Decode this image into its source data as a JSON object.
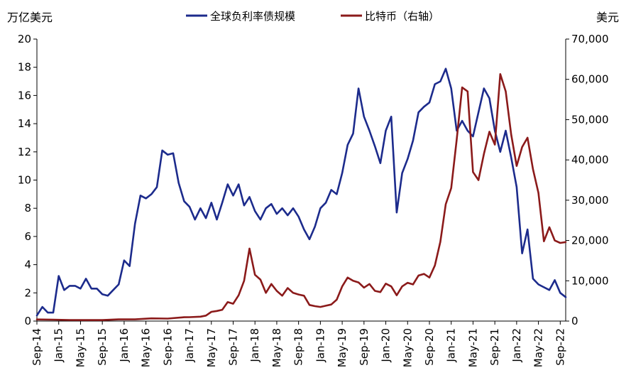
{
  "chart_data": {
    "type": "line",
    "left_axis_label": "万亿美元",
    "right_axis_label": "美元",
    "left_ylim": [
      0,
      20
    ],
    "left_yticks": [
      "0",
      "2",
      "4",
      "6",
      "8",
      "10",
      "12",
      "14",
      "16",
      "18",
      "20"
    ],
    "right_ylim": [
      0,
      70000
    ],
    "right_yticks": [
      "0",
      "10,000",
      "20,000",
      "30,000",
      "40,000",
      "50,000",
      "60,000",
      "70,000"
    ],
    "x_tick_labels": [
      "Sep-14",
      "Jan-15",
      "May-15",
      "Sep-15",
      "Jan-16",
      "May-16",
      "Sep-16",
      "Jan-17",
      "May-17",
      "Sep-17",
      "Jan-18",
      "May-18",
      "Sep-18",
      "Jan-19",
      "May-19",
      "Sep-19",
      "Jan-20",
      "May-20",
      "Sep-20",
      "Jan-21",
      "May-21",
      "Sep-21",
      "Jan-22",
      "May-22",
      "Sep-22"
    ],
    "grid": false,
    "legend_position": "top-center",
    "series": [
      {
        "name": "全球负利率债规模",
        "axis": "left",
        "color": "#1c2b8c",
        "points": [
          [
            "Sep-14",
            0.4
          ],
          [
            "Oct-14",
            1.0
          ],
          [
            "Nov-14",
            0.6
          ],
          [
            "Dec-14",
            0.6
          ],
          [
            "Jan-15",
            3.2
          ],
          [
            "Feb-15",
            2.2
          ],
          [
            "Mar-15",
            2.5
          ],
          [
            "Apr-15",
            2.5
          ],
          [
            "May-15",
            2.3
          ],
          [
            "Jun-15",
            3.0
          ],
          [
            "Jul-15",
            2.3
          ],
          [
            "Aug-15",
            2.3
          ],
          [
            "Sep-15",
            1.9
          ],
          [
            "Oct-15",
            1.8
          ],
          [
            "Nov-15",
            2.2
          ],
          [
            "Dec-15",
            2.6
          ],
          [
            "Jan-16",
            4.3
          ],
          [
            "Feb-16",
            3.9
          ],
          [
            "Mar-16",
            6.9
          ],
          [
            "Apr-16",
            8.9
          ],
          [
            "May-16",
            8.7
          ],
          [
            "Jun-16",
            9.0
          ],
          [
            "Jul-16",
            9.5
          ],
          [
            "Aug-16",
            12.1
          ],
          [
            "Sep-16",
            11.8
          ],
          [
            "Oct-16",
            11.9
          ],
          [
            "Nov-16",
            9.8
          ],
          [
            "Dec-16",
            8.5
          ],
          [
            "Jan-17",
            8.1
          ],
          [
            "Feb-17",
            7.2
          ],
          [
            "Mar-17",
            8.0
          ],
          [
            "Apr-17",
            7.3
          ],
          [
            "May-17",
            8.4
          ],
          [
            "Jun-17",
            7.2
          ],
          [
            "Jul-17",
            8.4
          ],
          [
            "Aug-17",
            9.7
          ],
          [
            "Sep-17",
            8.9
          ],
          [
            "Oct-17",
            9.7
          ],
          [
            "Nov-17",
            8.2
          ],
          [
            "Dec-17",
            8.8
          ],
          [
            "Jan-18",
            7.8
          ],
          [
            "Feb-18",
            7.2
          ],
          [
            "Mar-18",
            8.0
          ],
          [
            "Apr-18",
            8.3
          ],
          [
            "May-18",
            7.6
          ],
          [
            "Jun-18",
            8.0
          ],
          [
            "Jul-18",
            7.5
          ],
          [
            "Aug-18",
            8.0
          ],
          [
            "Sep-18",
            7.4
          ],
          [
            "Oct-18",
            6.5
          ],
          [
            "Nov-18",
            5.8
          ],
          [
            "Dec-18",
            6.7
          ],
          [
            "Jan-19",
            8.0
          ],
          [
            "Feb-19",
            8.4
          ],
          [
            "Mar-19",
            9.3
          ],
          [
            "Apr-19",
            9.0
          ],
          [
            "May-19",
            10.5
          ],
          [
            "Jun-19",
            12.5
          ],
          [
            "Jul-19",
            13.3
          ],
          [
            "Aug-19",
            16.5
          ],
          [
            "Sep-19",
            14.5
          ],
          [
            "Oct-19",
            13.5
          ],
          [
            "Nov-19",
            12.4
          ],
          [
            "Dec-19",
            11.2
          ],
          [
            "Jan-20",
            13.5
          ],
          [
            "Feb-20",
            14.5
          ],
          [
            "Mar-20",
            7.7
          ],
          [
            "Apr-20",
            10.5
          ],
          [
            "May-20",
            11.5
          ],
          [
            "Jun-20",
            12.8
          ],
          [
            "Jul-20",
            14.8
          ],
          [
            "Aug-20",
            15.2
          ],
          [
            "Sep-20",
            15.5
          ],
          [
            "Oct-20",
            16.8
          ],
          [
            "Nov-20",
            17.0
          ],
          [
            "Dec-20",
            17.9
          ],
          [
            "Jan-21",
            16.5
          ],
          [
            "Feb-21",
            13.5
          ],
          [
            "Mar-21",
            14.2
          ],
          [
            "Apr-21",
            13.5
          ],
          [
            "May-21",
            13.1
          ],
          [
            "Jun-21",
            14.8
          ],
          [
            "Jul-21",
            16.5
          ],
          [
            "Aug-21",
            15.8
          ],
          [
            "Sep-21",
            13.5
          ],
          [
            "Oct-21",
            12.0
          ],
          [
            "Nov-21",
            13.5
          ],
          [
            "Dec-21",
            11.6
          ],
          [
            "Jan-22",
            9.5
          ],
          [
            "Feb-22",
            4.8
          ],
          [
            "Mar-22",
            6.5
          ],
          [
            "Apr-22",
            3.0
          ],
          [
            "May-22",
            2.6
          ],
          [
            "Jun-22",
            2.4
          ],
          [
            "Jul-22",
            2.2
          ],
          [
            "Aug-22",
            2.9
          ],
          [
            "Sep-22",
            2.0
          ],
          [
            "Oct-22",
            1.7
          ]
        ]
      },
      {
        "name": "比特币（右轴）",
        "axis": "right",
        "color": "#8b1a1a",
        "points": [
          [
            "Sep-14",
            400
          ],
          [
            "Dec-14",
            350
          ],
          [
            "Mar-15",
            260
          ],
          [
            "Jun-15",
            250
          ],
          [
            "Sep-15",
            240
          ],
          [
            "Dec-15",
            430
          ],
          [
            "Mar-16",
            420
          ],
          [
            "Jun-16",
            670
          ],
          [
            "Sep-16",
            610
          ],
          [
            "Dec-16",
            960
          ],
          [
            "Jan-17",
            970
          ],
          [
            "Mar-17",
            1100
          ],
          [
            "Apr-17",
            1350
          ],
          [
            "May-17",
            2300
          ],
          [
            "Jun-17",
            2500
          ],
          [
            "Jul-17",
            2800
          ],
          [
            "Aug-17",
            4700
          ],
          [
            "Sep-17",
            4300
          ],
          [
            "Oct-17",
            6400
          ],
          [
            "Nov-17",
            10000
          ],
          [
            "Dec-17",
            18000
          ],
          [
            "Jan-18",
            11500
          ],
          [
            "Feb-18",
            10300
          ],
          [
            "Mar-18",
            7000
          ],
          [
            "Apr-18",
            9200
          ],
          [
            "May-18",
            7500
          ],
          [
            "Jun-18",
            6300
          ],
          [
            "Jul-18",
            8200
          ],
          [
            "Aug-18",
            7000
          ],
          [
            "Sep-18",
            6600
          ],
          [
            "Oct-18",
            6300
          ],
          [
            "Nov-18",
            4000
          ],
          [
            "Dec-18",
            3700
          ],
          [
            "Jan-19",
            3500
          ],
          [
            "Feb-19",
            3800
          ],
          [
            "Mar-19",
            4100
          ],
          [
            "Apr-19",
            5300
          ],
          [
            "May-19",
            8600
          ],
          [
            "Jun-19",
            10800
          ],
          [
            "Jul-19",
            10000
          ],
          [
            "Aug-19",
            9600
          ],
          [
            "Sep-19",
            8300
          ],
          [
            "Oct-19",
            9200
          ],
          [
            "Nov-19",
            7500
          ],
          [
            "Dec-19",
            7200
          ],
          [
            "Jan-20",
            9300
          ],
          [
            "Feb-20",
            8600
          ],
          [
            "Mar-20",
            6400
          ],
          [
            "Apr-20",
            8600
          ],
          [
            "May-20",
            9500
          ],
          [
            "Jun-20",
            9100
          ],
          [
            "Jul-20",
            11300
          ],
          [
            "Aug-20",
            11700
          ],
          [
            "Sep-20",
            10800
          ],
          [
            "Oct-20",
            13800
          ],
          [
            "Nov-20",
            19700
          ],
          [
            "Dec-20",
            29000
          ],
          [
            "Jan-21",
            33000
          ],
          [
            "Feb-21",
            45000
          ],
          [
            "Mar-21",
            58000
          ],
          [
            "Apr-21",
            57000
          ],
          [
            "May-21",
            37000
          ],
          [
            "Jun-21",
            35000
          ],
          [
            "Jul-21",
            41500
          ],
          [
            "Aug-21",
            47000
          ],
          [
            "Sep-21",
            43800
          ],
          [
            "Oct-21",
            61300
          ],
          [
            "Nov-21",
            57000
          ],
          [
            "Dec-21",
            46300
          ],
          [
            "Jan-22",
            38500
          ],
          [
            "Feb-22",
            43200
          ],
          [
            "Mar-22",
            45500
          ],
          [
            "Apr-22",
            37700
          ],
          [
            "May-22",
            31800
          ],
          [
            "Jun-22",
            19800
          ],
          [
            "Jul-22",
            23300
          ],
          [
            "Aug-22",
            20000
          ],
          [
            "Sep-22",
            19400
          ],
          [
            "Oct-22",
            19600
          ]
        ]
      }
    ]
  }
}
